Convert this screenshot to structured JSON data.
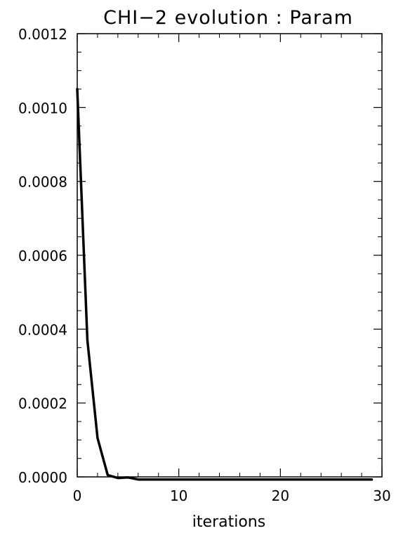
{
  "chart_data": {
    "type": "line",
    "title": "CHI−2 evolution : Param",
    "xlabel": "iterations",
    "ylabel": "",
    "xlim": [
      0,
      30
    ],
    "ylim": [
      0,
      0.0012
    ],
    "x_ticks": [
      "0",
      "10",
      "20",
      "30"
    ],
    "x_tick_values": [
      0,
      10,
      20,
      30
    ],
    "y_ticks": [
      "0.0000",
      "0.0002",
      "0.0004",
      "0.0006",
      "0.0008",
      "0.0010",
      "0.0012"
    ],
    "y_tick_values": [
      0,
      0.0002,
      0.0004,
      0.0006,
      0.0008,
      0.001,
      0.0012
    ],
    "grid": false,
    "series": [
      {
        "x": [
          0,
          1,
          2,
          3,
          4,
          5,
          6,
          7,
          8,
          9,
          10,
          11,
          12,
          13,
          14,
          15,
          16,
          17,
          18,
          19,
          20,
          21,
          22,
          23,
          24,
          25,
          26,
          27,
          28,
          29
        ],
        "y": [
          0.00105,
          0.00037,
          0.000105,
          5e-06,
          -3e-06,
          -1.5e-06,
          -7e-06,
          -7e-06,
          -7e-06,
          -7e-06,
          -7e-06,
          -7e-06,
          -7e-06,
          -7e-06,
          -7e-06,
          -7e-06,
          -7e-06,
          -7e-06,
          -7e-06,
          -7e-06,
          -7e-06,
          -7e-06,
          -7e-06,
          -7e-06,
          -7e-06,
          -7e-06,
          -7e-06,
          -7e-06,
          -7e-06,
          -7e-06
        ],
        "color": "#000000"
      }
    ]
  }
}
